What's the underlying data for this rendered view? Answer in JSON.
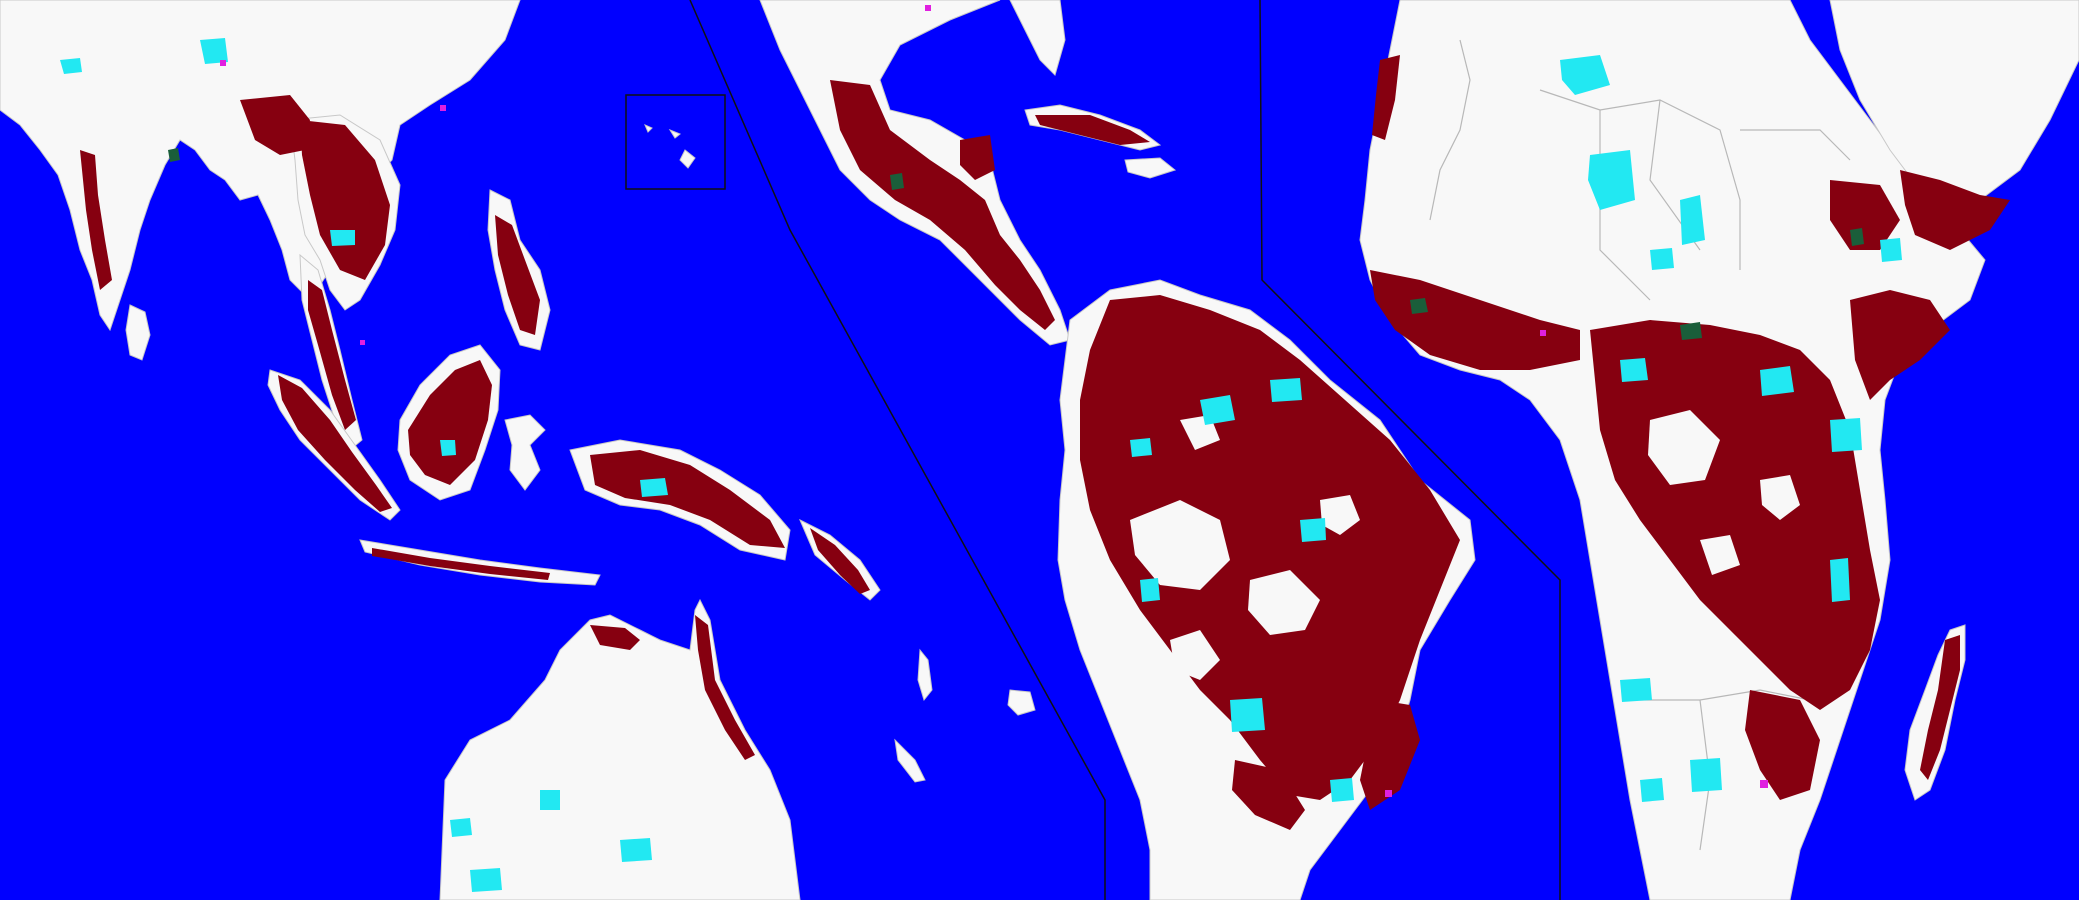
{
  "map": {
    "panels": [
      "southeast-asia-oceania",
      "central-south-america",
      "africa"
    ],
    "colors": {
      "ocean": "#0000ff",
      "land": "#f8f8f8",
      "forest": "#860010",
      "water": "#22e8f2",
      "dense-forest": "#1a5e3a",
      "other": "#e020e0"
    }
  }
}
